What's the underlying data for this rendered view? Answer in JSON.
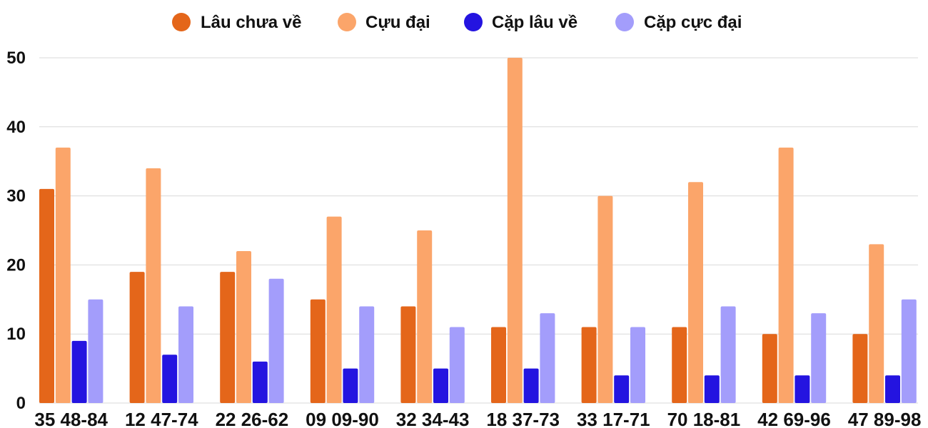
{
  "chart_data": {
    "type": "bar",
    "categories": [
      "35 48-84",
      "12 47-74",
      "22 26-62",
      "09 09-90",
      "32 34-43",
      "18 37-73",
      "33 17-71",
      "70 18-81",
      "42 69-96",
      "47 89-98"
    ],
    "series": [
      {
        "name": "Lâu chưa về",
        "color": "#e4661a",
        "values": [
          31,
          19,
          19,
          15,
          14,
          11,
          11,
          11,
          10,
          10
        ]
      },
      {
        "name": "Cựu đại",
        "color": "#fba56a",
        "values": [
          37,
          34,
          22,
          27,
          25,
          50,
          30,
          32,
          37,
          23
        ]
      },
      {
        "name": "Cặp lâu về",
        "color": "#2414e0",
        "values": [
          9,
          7,
          6,
          5,
          5,
          5,
          4,
          4,
          4,
          4
        ]
      },
      {
        "name": "Cặp cực đại",
        "color": "#a39dfb",
        "values": [
          15,
          14,
          18,
          14,
          11,
          13,
          11,
          14,
          13,
          15
        ]
      }
    ],
    "yticks": [
      "0",
      "10",
      "20",
      "30",
      "40",
      "50"
    ],
    "ylim": [
      0,
      50
    ],
    "grid": true,
    "legend_position": "top-center"
  }
}
